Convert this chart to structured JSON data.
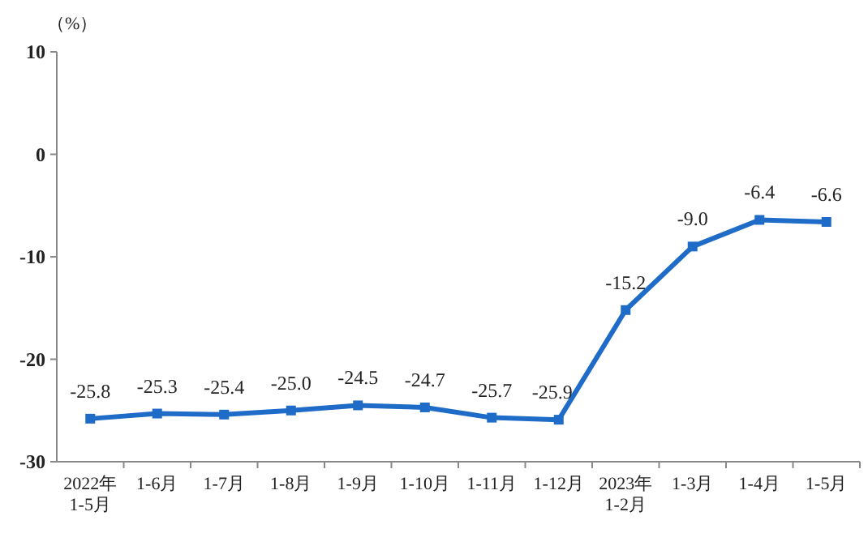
{
  "chart_data": {
    "type": "line",
    "ylabel": "（%）",
    "categories": [
      "2022年\n1-5月",
      "1-6月",
      "1-7月",
      "1-8月",
      "1-9月",
      "1-10月",
      "1-11月",
      "1-12月",
      "2023年\n1-2月",
      "1-3月",
      "1-4月",
      "1-5月"
    ],
    "series": [
      {
        "color": "#1f6cc8",
        "values": [
          -25.8,
          -25.3,
          -25.4,
          -25.0,
          -24.5,
          -24.7,
          -25.7,
          -25.9,
          -15.2,
          -9.0,
          -6.4,
          -6.6
        ],
        "value_labels": [
          "-25.8",
          "-25.3",
          "-25.4",
          "-25.0",
          "-24.5",
          "-24.7",
          "-25.7",
          "-25.9",
          "-15.2",
          "-9.0",
          "-6.4",
          "-6.6"
        ]
      }
    ],
    "ylim": [
      -30,
      10
    ],
    "yticks": [
      -30,
      -20,
      -10,
      0,
      10
    ],
    "grid": false,
    "marker": "square",
    "line_style": "solid"
  }
}
